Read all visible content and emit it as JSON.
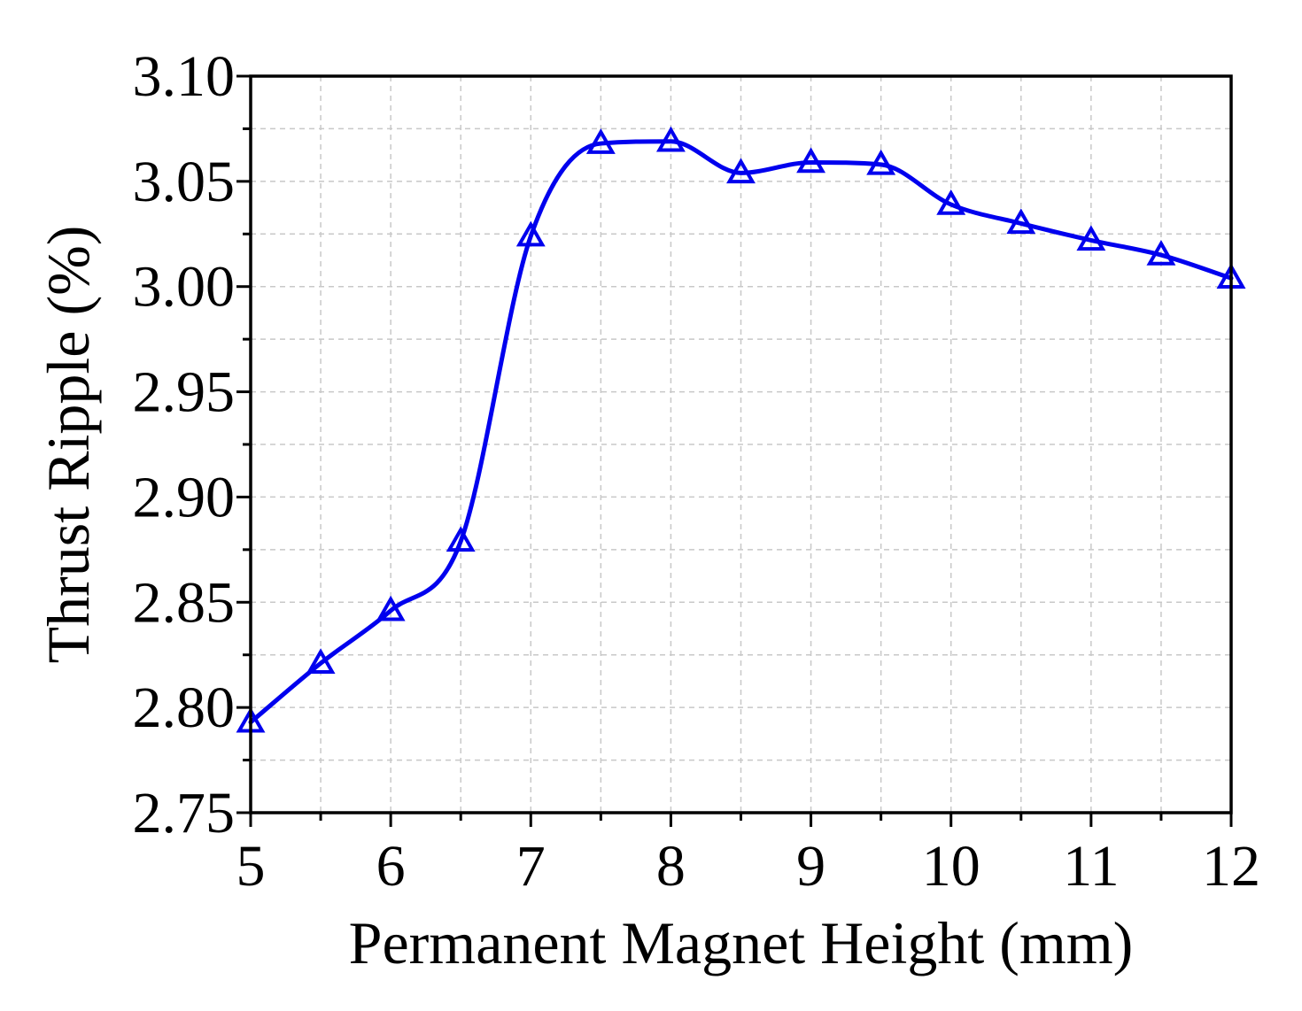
{
  "chart_data": {
    "type": "line",
    "title": "",
    "xlabel": "Permanent Magnet Height (mm)",
    "ylabel": "Thrust Ripple (%)",
    "xlim": [
      5,
      12
    ],
    "ylim": [
      2.75,
      3.1
    ],
    "xticks": [
      5,
      6,
      7,
      8,
      9,
      10,
      11,
      12
    ],
    "yticks": [
      2.75,
      2.8,
      2.85,
      2.9,
      2.95,
      3.0,
      3.05,
      3.1
    ],
    "xtick_labels": [
      "5",
      "6",
      "7",
      "8",
      "9",
      "10",
      "11",
      "12"
    ],
    "ytick_labels": [
      "2.75",
      "2.80",
      "2.85",
      "2.90",
      "2.95",
      "3.00",
      "3.05",
      "3.10"
    ],
    "grid": true,
    "legend": "none",
    "series": [
      {
        "color": "#0000ee",
        "marker": "triangle-open",
        "x": [
          5,
          5.5,
          6,
          6.5,
          7,
          7.5,
          8,
          8.5,
          9,
          9.5,
          10,
          10.5,
          11,
          11.5,
          12
        ],
        "y": [
          2.793,
          2.821,
          2.846,
          2.879,
          3.024,
          3.068,
          3.069,
          3.054,
          3.059,
          3.058,
          3.039,
          3.03,
          3.022,
          3.015,
          3.004
        ]
      }
    ]
  }
}
